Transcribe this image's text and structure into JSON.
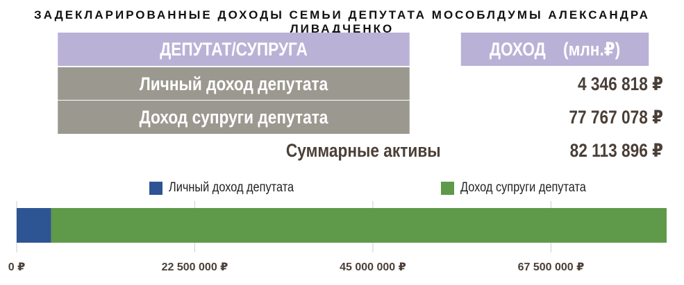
{
  "title": "ЗАДЕКЛАРИРОВАННЫЕ ДОХОДЫ СЕМЬИ ДЕПУТАТА МОСОБЛДУМЫ АЛЕКСАНДРА ЛИВАДЧЕНКО",
  "table": {
    "header": {
      "col1": "ДЕПУТАТ/СУПРУГА",
      "col2": "ДОХОД",
      "col2_unit": "(млн.₽)"
    },
    "rows": [
      {
        "label": "Личный доход депутата",
        "value": "4 346 818 ₽"
      },
      {
        "label": "Доход супруги депутата",
        "value": "77 767 078 ₽"
      },
      {
        "label": "Суммарные активы",
        "value": "82 113 896 ₽"
      }
    ]
  },
  "colors": {
    "header_bg": "#b9b2d6",
    "label_bg": "#9b9890",
    "value_text": "#4a3f37",
    "deputy": "#2e5593",
    "spouse": "#5f994a",
    "grid": "#cccccc"
  },
  "chart_data": {
    "type": "bar",
    "orientation": "horizontal",
    "stacked": true,
    "categories": [
      ""
    ],
    "series": [
      {
        "name": "Личный доход депутата",
        "values": [
          4346818
        ],
        "color": "#2e5593"
      },
      {
        "name": "Доход супруги депутата",
        "values": [
          77767078
        ],
        "color": "#5f994a"
      }
    ],
    "xlim": [
      0,
      82113896
    ],
    "xticks": [
      0,
      22500000,
      45000000,
      67500000
    ],
    "xtick_labels": [
      "0 ₽",
      "22 500 000 ₽",
      "45 000 000 ₽",
      "67 500 000 ₽"
    ],
    "grid": true,
    "legend_position": "top"
  }
}
